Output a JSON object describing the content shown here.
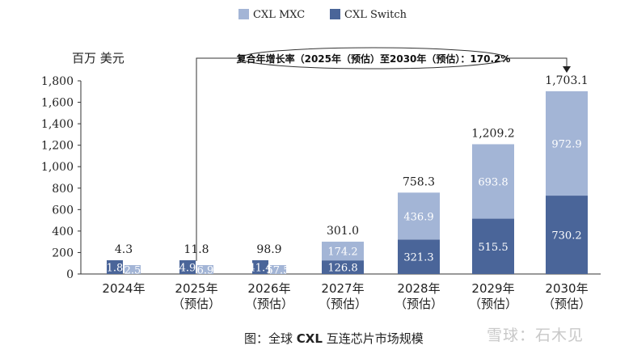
{
  "chart_data": {
    "type": "bar",
    "unit_label": "百万 美元",
    "categories": [
      {
        "line1": "2024年",
        "line2": ""
      },
      {
        "line1": "2025年",
        "line2": "（预估）"
      },
      {
        "line1": "2026年",
        "line2": "（预估）"
      },
      {
        "line1": "2027年",
        "line2": "（预估）"
      },
      {
        "line1": "2028年",
        "line2": "（预估）"
      },
      {
        "line1": "2029年",
        "line2": "（预估）"
      },
      {
        "line1": "2030年",
        "line2": "（预估）"
      }
    ],
    "series": [
      {
        "name": "CXL Switch",
        "color": "#4a6599",
        "values": [
          1.8,
          4.9,
          41.4,
          126.8,
          321.3,
          515.5,
          730.2
        ],
        "labels": [
          "1.8",
          "4.9",
          "41.4",
          "126.8",
          "321.3",
          "515.5",
          "730.2"
        ]
      },
      {
        "name": "CXL MXC",
        "color": "#a3b5d6",
        "values": [
          2.5,
          6.9,
          57.5,
          174.2,
          436.9,
          693.8,
          972.9
        ],
        "labels": [
          "2.5",
          "6.9",
          "57.5",
          "174.2",
          "436.9",
          "693.8",
          "972.9"
        ]
      }
    ],
    "totals": [
      4.3,
      11.8,
      98.9,
      301.0,
      758.3,
      1209.2,
      1703.1
    ],
    "total_labels": [
      "4.3",
      "11.8",
      "98.9",
      "301.0",
      "758.3",
      "1,209.2",
      "1,703.1"
    ],
    "yticks": [
      0,
      200,
      400,
      600,
      800,
      1000,
      1200,
      1400,
      1600,
      1800
    ],
    "ytick_labels": [
      "0",
      "200",
      "400",
      "600",
      "800",
      "1,000",
      "1,200",
      "1,400",
      "1,600",
      "1,800"
    ],
    "ylim": [
      0,
      1800
    ],
    "legend_position": "top-center",
    "grid": false,
    "annotation": "复合年增长率（2025年（预估）至2030年（预估）：170.2%"
  },
  "caption": {
    "prefix": "图：全球",
    "bold": "CXL",
    "suffix": "互连芯片市场规模"
  },
  "watermark": "雪球：石木见"
}
